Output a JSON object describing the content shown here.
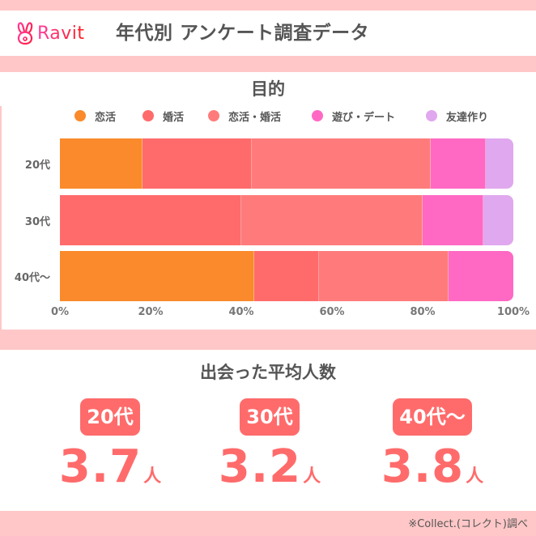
{
  "header": {
    "logo_text": "Ravit",
    "title": "年代別 アンケート調査データ"
  },
  "chart_data": {
    "type": "bar",
    "orientation": "horizontal",
    "stacked": true,
    "normalized": true,
    "title": "目的",
    "categories": [
      "20代",
      "30代",
      "40代〜"
    ],
    "series": [
      {
        "name": "恋活",
        "color": "#fa8a2b",
        "values": [
          18.2,
          0,
          42.9
        ]
      },
      {
        "name": "婚活",
        "color": "#ff6b6b",
        "values": [
          24.2,
          40.0,
          14.3
        ]
      },
      {
        "name": "恋活・婚活",
        "color": "#ff7b7b",
        "values": [
          39.4,
          40.0,
          28.6
        ]
      },
      {
        "name": "遊び・デート",
        "color": "#ff69c4",
        "values": [
          12.1,
          13.3,
          14.3
        ]
      },
      {
        "name": "友達作り",
        "color": "#e0a8ee",
        "values": [
          6.1,
          6.7,
          0
        ]
      }
    ],
    "xlabel": "",
    "ylabel": "",
    "xlim": [
      0,
      100
    ],
    "x_ticks": [
      "0%",
      "20%",
      "40%",
      "60%",
      "80%",
      "100%"
    ],
    "grid": false,
    "legend_position": "top"
  },
  "stats": {
    "title": "出会った平均人数",
    "items": [
      {
        "label": "20代",
        "value": "3.7",
        "unit": "人"
      },
      {
        "label": "30代",
        "value": "3.2",
        "unit": "人"
      },
      {
        "label": "40代〜",
        "value": "3.8",
        "unit": "人"
      }
    ]
  },
  "footer": {
    "source": "※Collect.(コレクト)調べ"
  },
  "colors": {
    "band": "#ffc7c7",
    "accent": "#ff6b6b",
    "text": "#555555"
  }
}
